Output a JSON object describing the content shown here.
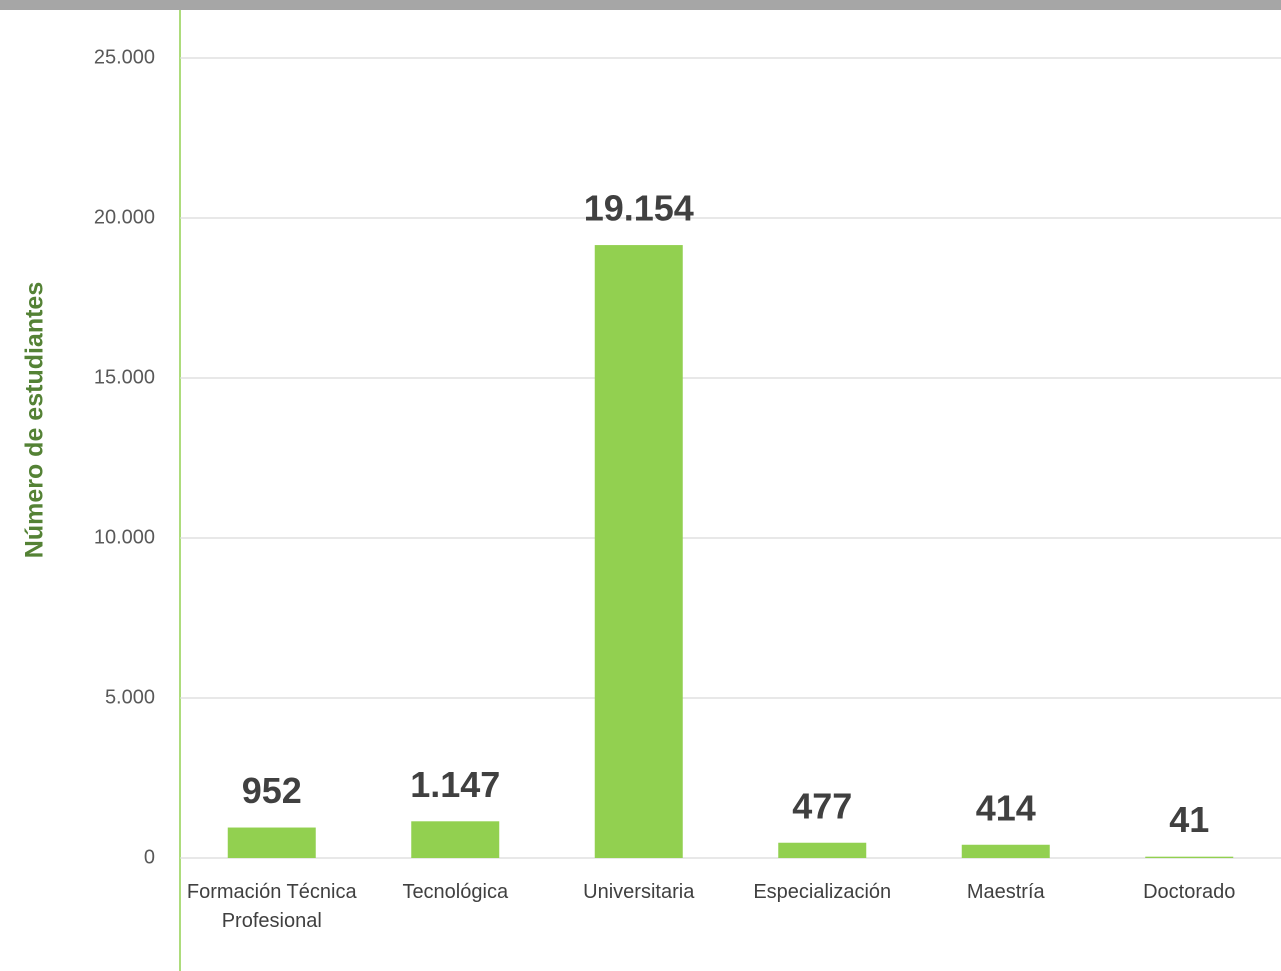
{
  "chart_data": {
    "type": "bar",
    "y_label": "Número de estudiantes",
    "categories": [
      "Formación Técnica Profesional",
      "Tecnológica",
      "Universitaria",
      "Especialización",
      "Maestría",
      "Doctorado"
    ],
    "values": [
      952,
      1147,
      19154,
      477,
      414,
      41
    ],
    "value_labels": [
      "952",
      "1.147",
      "19.154",
      "477",
      "414",
      "41"
    ],
    "color": "#92d050",
    "ylim": [
      0,
      25000
    ],
    "yticks": [
      0,
      {
        "value": 5000,
        "label": "5.000"
      },
      {
        "value": 10000,
        "label": "10.000"
      },
      {
        "value": 15000,
        "label": "15.000"
      },
      {
        "value": 20000,
        "label": "20.000"
      },
      {
        "value": 25000,
        "label": "25.000"
      }
    ],
    "grid": true
  }
}
